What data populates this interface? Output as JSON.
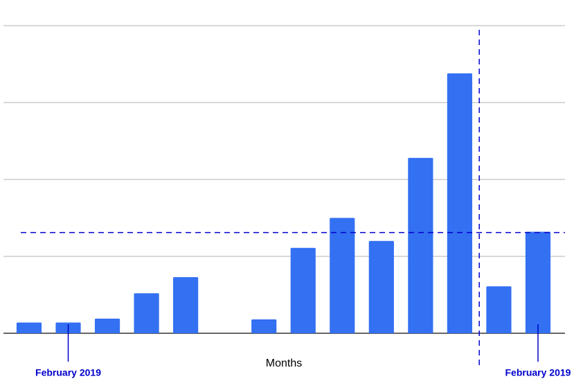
{
  "chart_data": {
    "type": "bar",
    "x_label": "Months",
    "categories": [
      null,
      null,
      null,
      null,
      null,
      null,
      null,
      null,
      null,
      null,
      null,
      null,
      null,
      null
    ],
    "values": [
      0.14,
      0.14,
      0.19,
      0.52,
      0.73,
      null,
      0.18,
      1.11,
      1.5,
      1.2,
      2.28,
      3.38,
      0.61,
      1.32
    ],
    "color": "#3370f2",
    "ylim": [
      0,
      4
    ],
    "yticks": [
      0,
      1,
      2,
      3,
      4
    ],
    "grid": true,
    "tick_labels": false,
    "reference_hline": 1.31,
    "reference_vline_x": 11.5,
    "reference_color": "#0000cc",
    "annotations": [
      {
        "text": "February 2019",
        "index": 1
      },
      {
        "text": "February 2019",
        "index": 13
      }
    ]
  }
}
